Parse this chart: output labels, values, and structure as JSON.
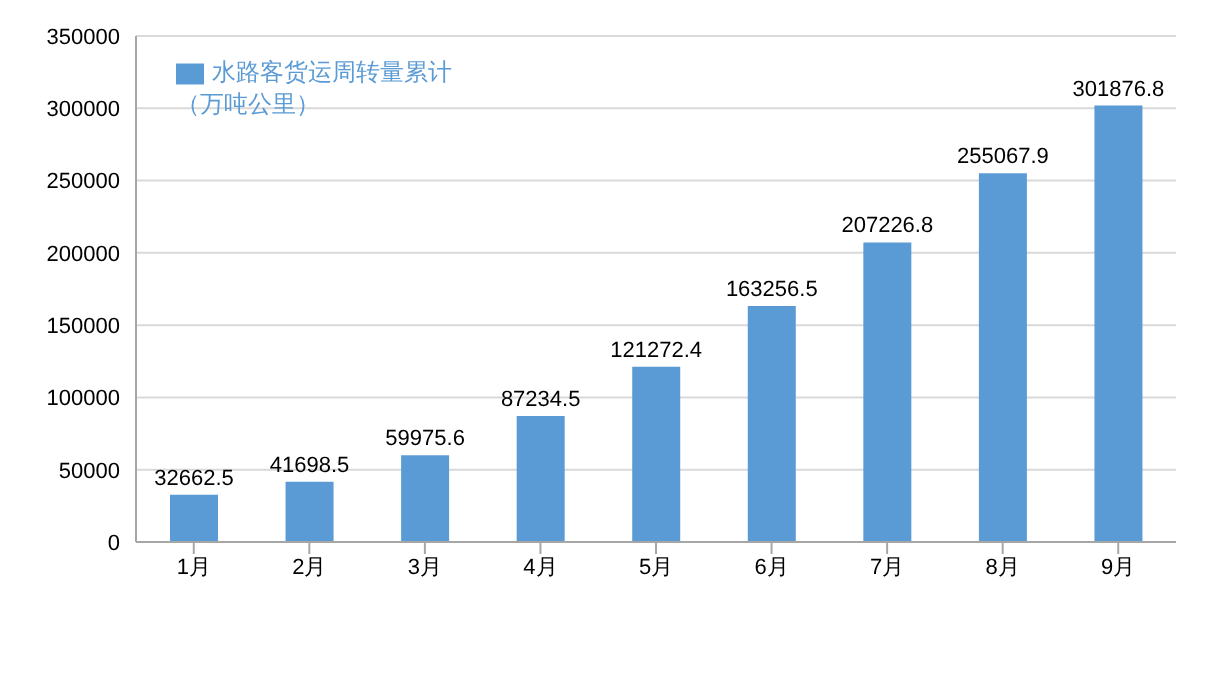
{
  "chart_data": {
    "type": "bar",
    "categories": [
      "1月",
      "2月",
      "3月",
      "4月",
      "5月",
      "6月",
      "7月",
      "8月",
      "9月"
    ],
    "series": [
      {
        "name": "水路客货运周转量累计（万吨公里）",
        "color": "#5b9bd5",
        "values": [
          32662.5,
          41698.5,
          59975.6,
          87234.5,
          121272.4,
          163256.5,
          207226.8,
          255067.9,
          301876.8
        ]
      }
    ],
    "ylim": [
      0,
      350000
    ],
    "yticks": [
      0,
      50000,
      100000,
      150000,
      200000,
      250000,
      300000,
      350000
    ],
    "grid": "y",
    "legend": "top left",
    "data_labels": true
  }
}
